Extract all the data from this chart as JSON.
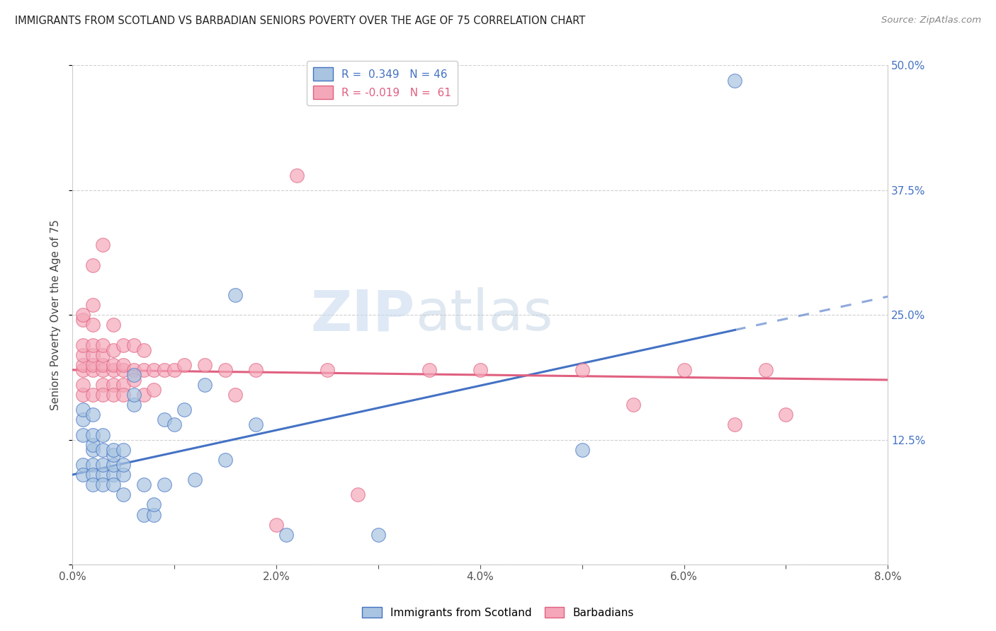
{
  "title": "IMMIGRANTS FROM SCOTLAND VS BARBADIAN SENIORS POVERTY OVER THE AGE OF 75 CORRELATION CHART",
  "source": "Source: ZipAtlas.com",
  "ylabel": "Seniors Poverty Over the Age of 75",
  "x_ticks": [
    0.0,
    0.01,
    0.02,
    0.03,
    0.04,
    0.05,
    0.06,
    0.07,
    0.08
  ],
  "x_tick_labels": [
    "0.0%",
    "",
    "2.0%",
    "",
    "4.0%",
    "",
    "6.0%",
    "",
    "8.0%"
  ],
  "y_ticks": [
    0.0,
    0.125,
    0.25,
    0.375,
    0.5
  ],
  "y_tick_labels": [
    "",
    "12.5%",
    "25.0%",
    "37.5%",
    "50.0%"
  ],
  "xlim": [
    0.0,
    0.08
  ],
  "ylim": [
    0.0,
    0.5
  ],
  "scotland_R": 0.349,
  "scotland_N": 46,
  "barbadian_R": -0.019,
  "barbadian_N": 61,
  "scotland_color": "#a8c4e0",
  "barbadian_color": "#f4a7b9",
  "scotland_line_color": "#4472c4",
  "barbadian_line_color": "#e06080",
  "watermark_zip": "ZIP",
  "watermark_atlas": "atlas",
  "scotland_trend_x0": 0.0,
  "scotland_trend_y0": 0.09,
  "scotland_trend_x1": 0.065,
  "scotland_trend_y1": 0.235,
  "scotland_trend_solid_end": 0.065,
  "barbadian_trend_x0": 0.0,
  "barbadian_trend_y0": 0.195,
  "barbadian_trend_x1": 0.08,
  "barbadian_trend_y1": 0.185,
  "scotland_x": [
    0.001,
    0.001,
    0.001,
    0.001,
    0.001,
    0.002,
    0.002,
    0.002,
    0.002,
    0.002,
    0.002,
    0.002,
    0.003,
    0.003,
    0.003,
    0.003,
    0.003,
    0.004,
    0.004,
    0.004,
    0.004,
    0.004,
    0.005,
    0.005,
    0.005,
    0.005,
    0.006,
    0.006,
    0.006,
    0.007,
    0.007,
    0.008,
    0.008,
    0.009,
    0.009,
    0.01,
    0.011,
    0.012,
    0.013,
    0.015,
    0.016,
    0.018,
    0.021,
    0.03,
    0.05,
    0.065
  ],
  "scotland_y": [
    0.145,
    0.155,
    0.13,
    0.1,
    0.09,
    0.1,
    0.115,
    0.12,
    0.13,
    0.15,
    0.09,
    0.08,
    0.09,
    0.1,
    0.115,
    0.13,
    0.08,
    0.09,
    0.1,
    0.11,
    0.115,
    0.08,
    0.09,
    0.1,
    0.115,
    0.07,
    0.16,
    0.17,
    0.19,
    0.05,
    0.08,
    0.05,
    0.06,
    0.08,
    0.145,
    0.14,
    0.155,
    0.085,
    0.18,
    0.105,
    0.27,
    0.14,
    0.03,
    0.03,
    0.115,
    0.485
  ],
  "barbadian_x": [
    0.001,
    0.001,
    0.001,
    0.001,
    0.001,
    0.001,
    0.001,
    0.001,
    0.002,
    0.002,
    0.002,
    0.002,
    0.002,
    0.002,
    0.002,
    0.002,
    0.003,
    0.003,
    0.003,
    0.003,
    0.003,
    0.003,
    0.003,
    0.004,
    0.004,
    0.004,
    0.004,
    0.004,
    0.004,
    0.005,
    0.005,
    0.005,
    0.005,
    0.005,
    0.006,
    0.006,
    0.006,
    0.007,
    0.007,
    0.007,
    0.008,
    0.008,
    0.009,
    0.01,
    0.011,
    0.013,
    0.015,
    0.016,
    0.018,
    0.02,
    0.022,
    0.025,
    0.028,
    0.035,
    0.04,
    0.05,
    0.055,
    0.06,
    0.065,
    0.068,
    0.07
  ],
  "barbadian_y": [
    0.195,
    0.2,
    0.21,
    0.22,
    0.245,
    0.25,
    0.17,
    0.18,
    0.195,
    0.2,
    0.21,
    0.22,
    0.24,
    0.26,
    0.3,
    0.17,
    0.195,
    0.2,
    0.21,
    0.22,
    0.32,
    0.18,
    0.17,
    0.195,
    0.2,
    0.215,
    0.24,
    0.18,
    0.17,
    0.195,
    0.2,
    0.22,
    0.18,
    0.17,
    0.195,
    0.22,
    0.185,
    0.195,
    0.215,
    0.17,
    0.195,
    0.175,
    0.195,
    0.195,
    0.2,
    0.2,
    0.195,
    0.17,
    0.195,
    0.04,
    0.39,
    0.195,
    0.07,
    0.195,
    0.195,
    0.195,
    0.16,
    0.195,
    0.14,
    0.195,
    0.15
  ]
}
